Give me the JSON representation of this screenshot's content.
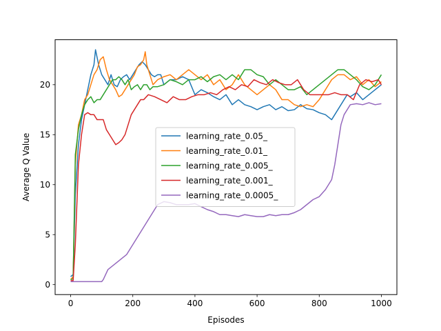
{
  "chart_data": {
    "type": "line",
    "title": "",
    "xlabel": "Episodes",
    "ylabel": "Average Q Value",
    "xlim": [
      -50,
      1050
    ],
    "ylim": [
      -1.0,
      24.5
    ],
    "xticks": [
      0,
      200,
      400,
      600,
      800,
      1000
    ],
    "yticks": [
      0,
      5,
      10,
      15,
      20
    ],
    "grid": false,
    "legend_position": "center",
    "series": [
      {
        "name": "learning_rate_0.05_",
        "color": "#1f77b4",
        "x": [
          0,
          8,
          15,
          25,
          35,
          45,
          55,
          65,
          75,
          80,
          90,
          100,
          110,
          120,
          130,
          140,
          150,
          160,
          170,
          180,
          190,
          200,
          210,
          220,
          230,
          240,
          250,
          260,
          270,
          280,
          290,
          300,
          320,
          340,
          360,
          380,
          400,
          420,
          440,
          460,
          480,
          500,
          520,
          540,
          560,
          580,
          600,
          620,
          640,
          660,
          680,
          700,
          720,
          740,
          760,
          780,
          800,
          820,
          840,
          850,
          860,
          870,
          880,
          890,
          900,
          920,
          940,
          960,
          980,
          1000
        ],
        "y": [
          0.8,
          1.0,
          9.0,
          14.0,
          16.5,
          18.0,
          19.5,
          21.0,
          22.0,
          23.5,
          22.0,
          21.0,
          20.5,
          20.0,
          21.0,
          20.0,
          19.8,
          20.5,
          20.8,
          21.0,
          20.5,
          21.0,
          21.5,
          22.0,
          22.3,
          22.0,
          21.5,
          21.0,
          20.8,
          21.0,
          21.0,
          20.0,
          20.5,
          20.5,
          20.8,
          20.5,
          19.0,
          19.5,
          19.2,
          18.8,
          18.5,
          19.0,
          18.0,
          18.5,
          18.0,
          17.8,
          17.5,
          17.8,
          18.0,
          17.5,
          17.8,
          17.4,
          17.5,
          18.0,
          17.6,
          17.5,
          17.2,
          17.0,
          16.5,
          17.0,
          17.5,
          18.0,
          18.5,
          19.0,
          18.8,
          19.2,
          18.5,
          19.0,
          19.5,
          20.0
        ]
      },
      {
        "name": "learning_rate_0.01_",
        "color": "#ff7f0e",
        "x": [
          0,
          8,
          15,
          25,
          35,
          45,
          55,
          65,
          75,
          85,
          95,
          105,
          115,
          125,
          135,
          145,
          155,
          165,
          175,
          185,
          195,
          205,
          215,
          225,
          235,
          240,
          245,
          255,
          265,
          280,
          300,
          320,
          340,
          360,
          380,
          400,
          420,
          440,
          460,
          480,
          500,
          520,
          540,
          560,
          580,
          600,
          620,
          640,
          660,
          680,
          700,
          720,
          740,
          760,
          780,
          800,
          820,
          840,
          860,
          880,
          900,
          920,
          940,
          960,
          980,
          1000
        ],
        "y": [
          0.5,
          0.8,
          12.0,
          16.0,
          17.0,
          18.5,
          19.0,
          20.0,
          21.0,
          21.5,
          22.5,
          22.8,
          21.5,
          20.5,
          20.0,
          19.5,
          18.8,
          19.0,
          19.5,
          20.0,
          20.5,
          21.0,
          21.8,
          22.0,
          22.5,
          23.3,
          22.0,
          21.0,
          20.0,
          20.5,
          20.8,
          21.0,
          20.5,
          21.0,
          21.5,
          21.0,
          20.5,
          21.0,
          20.0,
          20.5,
          19.5,
          20.0,
          21.0,
          20.0,
          19.5,
          19.0,
          19.5,
          20.0,
          19.5,
          18.5,
          18.5,
          18.0,
          17.8,
          18.0,
          17.8,
          18.5,
          19.5,
          20.5,
          21.0,
          21.0,
          20.5,
          20.8,
          20.0,
          20.5,
          19.8,
          20.3
        ]
      },
      {
        "name": "learning_rate_0.005_",
        "color": "#2ca02c",
        "x": [
          0,
          8,
          15,
          25,
          35,
          45,
          55,
          65,
          75,
          85,
          95,
          105,
          115,
          125,
          135,
          145,
          155,
          165,
          175,
          185,
          195,
          205,
          215,
          225,
          235,
          245,
          255,
          265,
          280,
          300,
          320,
          340,
          360,
          380,
          400,
          420,
          440,
          460,
          480,
          500,
          520,
          540,
          560,
          580,
          600,
          620,
          640,
          660,
          680,
          700,
          720,
          740,
          760,
          780,
          800,
          820,
          840,
          860,
          880,
          900,
          920,
          940,
          960,
          980,
          1000
        ],
        "y": [
          0.5,
          0.6,
          13.0,
          15.5,
          17.0,
          18.0,
          18.5,
          18.8,
          18.2,
          18.5,
          18.5,
          19.0,
          19.5,
          20.0,
          20.5,
          20.5,
          20.8,
          20.5,
          20.0,
          20.5,
          19.5,
          19.8,
          20.0,
          19.5,
          20.0,
          20.0,
          19.5,
          19.8,
          19.8,
          20.0,
          20.5,
          20.3,
          20.0,
          20.5,
          20.5,
          20.8,
          20.3,
          20.8,
          21.0,
          20.5,
          21.0,
          20.5,
          21.5,
          21.5,
          21.0,
          20.8,
          20.0,
          20.5,
          20.0,
          19.5,
          19.5,
          19.8,
          19.0,
          19.5,
          20.0,
          20.5,
          21.0,
          21.5,
          21.5,
          21.0,
          20.5,
          19.8,
          19.5,
          20.0,
          21.0
        ]
      },
      {
        "name": "learning_rate_0.001_",
        "color": "#d62728",
        "x": [
          0,
          8,
          15,
          25,
          35,
          45,
          55,
          65,
          75,
          85,
          95,
          105,
          115,
          125,
          135,
          145,
          155,
          165,
          175,
          185,
          195,
          205,
          215,
          225,
          235,
          250,
          270,
          290,
          310,
          330,
          350,
          370,
          390,
          410,
          430,
          450,
          470,
          490,
          510,
          530,
          550,
          570,
          590,
          610,
          630,
          650,
          670,
          690,
          710,
          730,
          750,
          770,
          790,
          810,
          830,
          850,
          870,
          890,
          910,
          930,
          950,
          970,
          990,
          1000
        ],
        "y": [
          0.4,
          0.4,
          4.0,
          12.0,
          15.0,
          17.0,
          17.2,
          17.0,
          17.0,
          16.5,
          16.5,
          16.5,
          15.5,
          15.0,
          14.5,
          14.0,
          14.2,
          14.5,
          15.0,
          16.0,
          17.0,
          17.5,
          18.0,
          18.5,
          18.5,
          19.0,
          18.8,
          18.5,
          18.2,
          18.8,
          18.5,
          18.5,
          18.8,
          19.0,
          19.0,
          19.2,
          19.0,
          19.5,
          19.8,
          19.5,
          20.0,
          19.8,
          20.5,
          20.2,
          20.0,
          20.5,
          20.2,
          20.0,
          20.0,
          20.5,
          19.5,
          19.0,
          19.0,
          19.0,
          19.0,
          19.2,
          19.0,
          19.0,
          18.5,
          20.0,
          20.5,
          20.3,
          20.5,
          20.0
        ]
      },
      {
        "name": "learning_rate_0.0005_",
        "color": "#9467bd",
        "x": [
          0,
          20,
          40,
          60,
          80,
          100,
          105,
          120,
          140,
          160,
          180,
          200,
          220,
          240,
          260,
          280,
          300,
          320,
          340,
          360,
          380,
          400,
          420,
          440,
          460,
          480,
          500,
          520,
          540,
          560,
          580,
          600,
          620,
          640,
          660,
          680,
          700,
          720,
          740,
          760,
          780,
          800,
          820,
          840,
          850,
          860,
          870,
          880,
          890,
          900,
          920,
          940,
          960,
          980,
          1000
        ],
        "y": [
          0.3,
          0.3,
          0.3,
          0.3,
          0.3,
          0.3,
          0.5,
          1.5,
          2.0,
          2.5,
          3.0,
          4.0,
          5.0,
          6.0,
          7.0,
          8.0,
          8.3,
          8.2,
          8.0,
          8.0,
          8.0,
          8.1,
          7.8,
          7.5,
          7.3,
          7.0,
          7.0,
          6.9,
          6.8,
          7.0,
          6.9,
          6.8,
          6.8,
          7.0,
          6.9,
          7.0,
          7.0,
          7.2,
          7.5,
          8.0,
          8.5,
          8.8,
          9.5,
          10.5,
          12.0,
          14.0,
          16.0,
          17.0,
          17.5,
          18.0,
          18.1,
          18.0,
          18.2,
          18.0,
          18.1
        ]
      }
    ]
  }
}
